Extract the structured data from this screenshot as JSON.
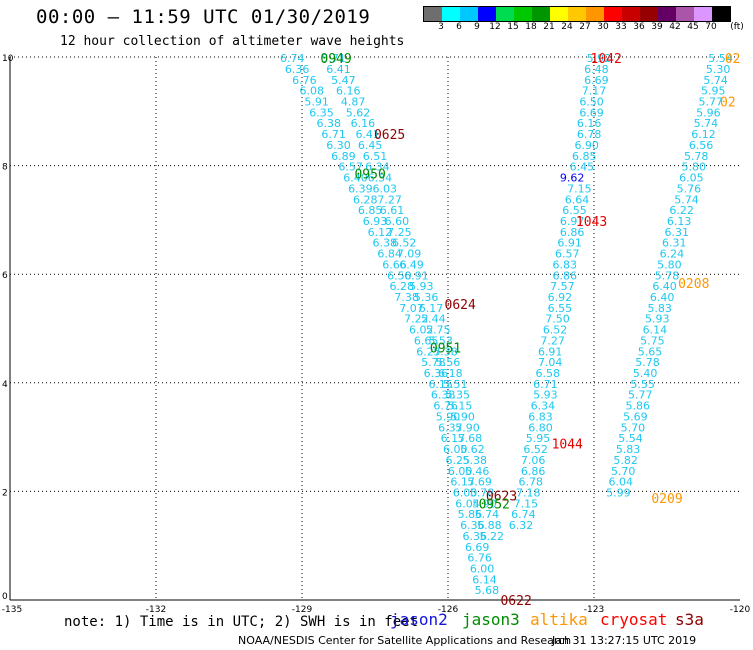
{
  "header": {
    "title": "00:00 – 11:59 UTC 01/30/2019",
    "subtitle": "12 hour collection of altimeter wave heights"
  },
  "colorbar": {
    "colors": [
      "#6e6e6e",
      "#00ffff",
      "#00c8ff",
      "#0000ff",
      "#00dc50",
      "#00c800",
      "#009600",
      "#ffff00",
      "#ffc800",
      "#ff9600",
      "#ff0000",
      "#c80000",
      "#960000",
      "#640064",
      "#aa55aa",
      "#dc96ff",
      "#000000"
    ],
    "labels": [
      "3",
      "6",
      "9",
      "12",
      "15",
      "18",
      "21",
      "24",
      "27",
      "30",
      "33",
      "36",
      "39",
      "42",
      "45",
      "70",
      "(ft)"
    ]
  },
  "chart_data": {
    "type": "scatter",
    "xlim": [
      -135,
      -120
    ],
    "ylim": [
      0,
      10
    ],
    "xticks": [
      "-135",
      "-132",
      "-129",
      "-126",
      "-123",
      "-120"
    ],
    "yticks": [
      "0",
      "2",
      "4",
      "6",
      "8",
      "10"
    ],
    "grid": true,
    "series": [
      {
        "name": "jason2",
        "color": "#1414dc",
        "points": []
      },
      {
        "name": "jason3",
        "color": "#008c00",
        "points": []
      },
      {
        "name": "altika",
        "color": "#ff9600",
        "points": []
      },
      {
        "name": "cryosat",
        "color": "#ff0000",
        "points": []
      },
      {
        "name": "s3a",
        "color": "#8c0000",
        "points": []
      }
    ],
    "tracks": [
      {
        "color": "#1ec8f0",
        "points": [
          [
            -129.2,
            9.98,
            "6.74"
          ],
          [
            -129.1,
            9.78,
            "6.36"
          ],
          [
            -128.95,
            9.58,
            "6.76"
          ],
          [
            -128.8,
            9.38,
            "6.08"
          ],
          [
            -128.7,
            9.18,
            "5.91"
          ],
          [
            -128.6,
            8.98,
            "6.35"
          ],
          [
            -128.45,
            8.78,
            "6.38"
          ],
          [
            -128.35,
            8.58,
            "6.71"
          ],
          [
            -128.25,
            8.38,
            "6.30"
          ],
          [
            -128.15,
            8.18,
            "6.89"
          ],
          [
            -128.0,
            7.98,
            "6.57"
          ],
          [
            -127.9,
            7.78,
            "6.40"
          ],
          [
            -127.8,
            7.58,
            "6.39"
          ],
          [
            -127.7,
            7.38,
            "6.28"
          ],
          [
            -127.6,
            7.18,
            "6.85"
          ],
          [
            -127.5,
            6.98,
            "6.93"
          ],
          [
            -127.4,
            6.78,
            "6.12"
          ],
          [
            -127.3,
            6.58,
            "6.38"
          ],
          [
            -127.2,
            6.38,
            "6.84"
          ],
          [
            -127.1,
            6.18,
            "6.66"
          ],
          [
            -127.0,
            5.98,
            "6.50"
          ],
          [
            -126.95,
            5.78,
            "6.28"
          ],
          [
            -126.85,
            5.58,
            "7.38"
          ],
          [
            -126.75,
            5.38,
            "7.07"
          ],
          [
            -126.65,
            5.18,
            "7.22"
          ],
          [
            -126.55,
            4.98,
            "6.02"
          ],
          [
            -126.45,
            4.78,
            "6.65"
          ],
          [
            -126.4,
            4.58,
            "6.27"
          ],
          [
            -126.3,
            4.38,
            "5.78"
          ],
          [
            -126.25,
            4.18,
            "6.36"
          ],
          [
            -126.15,
            3.98,
            "6.15"
          ],
          [
            -126.1,
            3.78,
            "6.38"
          ],
          [
            -126.05,
            3.58,
            "6.76"
          ],
          [
            -126.0,
            3.38,
            "5.90"
          ],
          [
            -125.95,
            3.18,
            "6.37"
          ],
          [
            -125.9,
            2.98,
            "6.17"
          ],
          [
            -125.85,
            2.78,
            "6.00"
          ],
          [
            -125.8,
            2.58,
            "6.25"
          ],
          [
            -125.75,
            2.38,
            "6.00"
          ],
          [
            -125.7,
            2.18,
            "6.17"
          ],
          [
            -125.65,
            1.98,
            "6.00"
          ],
          [
            -125.6,
            1.78,
            "6.04"
          ],
          [
            -125.55,
            1.58,
            "5.86"
          ],
          [
            -125.5,
            1.38,
            "6.36"
          ],
          [
            -125.45,
            1.18,
            "6.36"
          ],
          [
            -125.4,
            0.98,
            "6.69"
          ],
          [
            -125.35,
            0.78,
            "6.76"
          ],
          [
            -125.3,
            0.58,
            "6.00"
          ],
          [
            -125.25,
            0.38,
            "6.14"
          ],
          [
            -125.2,
            0.18,
            "5.68"
          ]
        ]
      },
      {
        "color": "#1ec8f0",
        "points": [
          [
            -128.35,
            9.98,
            "5.71"
          ],
          [
            -128.25,
            9.78,
            "6.41"
          ],
          [
            -128.15,
            9.58,
            "5.47"
          ],
          [
            -128.05,
            9.38,
            "6.16"
          ],
          [
            -127.95,
            9.18,
            "4.87"
          ],
          [
            -127.85,
            8.98,
            "5.62"
          ],
          [
            -127.75,
            8.78,
            "6.16"
          ],
          [
            -127.65,
            8.58,
            "6.41"
          ],
          [
            -127.6,
            8.38,
            "6.45"
          ],
          [
            -127.5,
            8.18,
            "6.51"
          ],
          [
            -127.45,
            7.98,
            "6.34"
          ],
          [
            -127.4,
            7.78,
            "6.34"
          ],
          [
            -127.3,
            7.58,
            "6.03"
          ],
          [
            -127.2,
            7.38,
            "7.27"
          ],
          [
            -127.15,
            7.18,
            "6.61"
          ],
          [
            -127.05,
            6.98,
            "6.60"
          ],
          [
            -127.0,
            6.78,
            "7.25"
          ],
          [
            -126.9,
            6.58,
            "6.52"
          ],
          [
            -126.8,
            6.38,
            "7.09"
          ],
          [
            -126.75,
            6.18,
            "6.49"
          ],
          [
            -126.65,
            5.98,
            "6.91"
          ],
          [
            -126.55,
            5.78,
            "5.93"
          ],
          [
            -126.45,
            5.58,
            "5.36"
          ],
          [
            -126.35,
            5.38,
            "6.17"
          ],
          [
            -126.3,
            5.18,
            "5.44"
          ],
          [
            -126.2,
            4.98,
            "5.75"
          ],
          [
            -126.15,
            4.78,
            "5.53"
          ],
          [
            -126.05,
            4.58,
            "5.38"
          ],
          [
            -126.0,
            4.38,
            "5.56"
          ],
          [
            -125.95,
            4.18,
            "6.18"
          ],
          [
            -125.85,
            3.98,
            "5.51"
          ],
          [
            -125.8,
            3.78,
            "5.35"
          ],
          [
            -125.75,
            3.58,
            "5.15"
          ],
          [
            -125.7,
            3.38,
            "5.90"
          ],
          [
            -125.6,
            3.18,
            "5.90"
          ],
          [
            -125.55,
            2.98,
            "5.68"
          ],
          [
            -125.5,
            2.78,
            "5.62"
          ],
          [
            -125.45,
            2.58,
            "5.38"
          ],
          [
            -125.4,
            2.38,
            "5.46"
          ],
          [
            -125.35,
            2.18,
            "5.69"
          ],
          [
            -125.3,
            1.98,
            "5.78"
          ],
          [
            -125.25,
            1.78,
            "5.90"
          ],
          [
            -125.2,
            1.58,
            "5.74"
          ],
          [
            -125.15,
            1.38,
            "5.88"
          ],
          [
            -125.1,
            1.18,
            "5.22"
          ]
        ]
      },
      {
        "color": "#1ec8f0",
        "points": [
          [
            -122.9,
            9.98,
            "5.92"
          ],
          [
            -122.95,
            9.78,
            "6.48"
          ],
          [
            -122.95,
            9.58,
            "6.69"
          ],
          [
            -123.0,
            9.38,
            "7.17"
          ],
          [
            -123.05,
            9.18,
            "6.50"
          ],
          [
            -123.05,
            8.98,
            "6.69"
          ],
          [
            -123.1,
            8.78,
            "6.16"
          ],
          [
            -123.1,
            8.58,
            "6.78"
          ],
          [
            -123.15,
            8.38,
            "6.90"
          ],
          [
            -123.2,
            8.18,
            "6.85"
          ],
          [
            -123.25,
            7.98,
            "6.45"
          ],
          [
            -123.3,
            7.58,
            "7.15"
          ],
          [
            -123.35,
            7.38,
            "6.64"
          ],
          [
            -123.4,
            7.18,
            "6.55"
          ],
          [
            -123.45,
            6.98,
            "6.97"
          ],
          [
            -123.45,
            6.78,
            "6.86"
          ],
          [
            -123.5,
            6.58,
            "6.91"
          ],
          [
            -123.55,
            6.38,
            "6.57"
          ],
          [
            -123.6,
            6.18,
            "6.83"
          ],
          [
            -123.6,
            5.98,
            "6.86"
          ],
          [
            -123.65,
            5.78,
            "7.57"
          ],
          [
            -123.7,
            5.58,
            "6.92"
          ],
          [
            -123.7,
            5.38,
            "6.55"
          ],
          [
            -123.75,
            5.18,
            "7.50"
          ],
          [
            -123.8,
            4.98,
            "6.52"
          ],
          [
            -123.85,
            4.78,
            "7.27"
          ],
          [
            -123.9,
            4.58,
            "6.91"
          ],
          [
            -123.9,
            4.38,
            "7.04"
          ],
          [
            -123.95,
            4.18,
            "6.58"
          ],
          [
            -124.0,
            3.98,
            "6.71"
          ],
          [
            -124.0,
            3.78,
            "5.93"
          ],
          [
            -124.05,
            3.58,
            "6.34"
          ],
          [
            -124.1,
            3.38,
            "6.83"
          ],
          [
            -124.1,
            3.18,
            "6.80"
          ],
          [
            -124.15,
            2.98,
            "5.95"
          ],
          [
            -124.2,
            2.78,
            "6.52"
          ],
          [
            -124.25,
            2.58,
            "7.06"
          ],
          [
            -124.25,
            2.38,
            "6.86"
          ],
          [
            -124.3,
            2.18,
            "6.78"
          ],
          [
            -124.35,
            1.98,
            "7.18"
          ],
          [
            -124.4,
            1.78,
            "7.15"
          ],
          [
            -124.45,
            1.58,
            "6.74"
          ],
          [
            -124.5,
            1.38,
            "6.32"
          ]
        ]
      },
      {
        "color": "#1ec8f0",
        "points": [
          [
            -120.4,
            9.98,
            "5.54"
          ],
          [
            -120.45,
            9.78,
            "5.30"
          ],
          [
            -120.5,
            9.58,
            "5.74"
          ],
          [
            -120.55,
            9.38,
            "5.95"
          ],
          [
            -120.6,
            9.18,
            "5.77"
          ],
          [
            -120.65,
            8.98,
            "5.96"
          ],
          [
            -120.7,
            8.78,
            "5.74"
          ],
          [
            -120.75,
            8.58,
            "6.12"
          ],
          [
            -120.8,
            8.38,
            "6.56"
          ],
          [
            -120.9,
            8.18,
            "5.78"
          ],
          [
            -120.95,
            7.98,
            "5.80"
          ],
          [
            -121.0,
            7.78,
            "6.05"
          ],
          [
            -121.05,
            7.58,
            "5.76"
          ],
          [
            -121.1,
            7.38,
            "5.74"
          ],
          [
            -121.2,
            7.18,
            "6.22"
          ],
          [
            -121.25,
            6.98,
            "6.13"
          ],
          [
            -121.3,
            6.78,
            "6.31"
          ],
          [
            -121.35,
            6.58,
            "6.31"
          ],
          [
            -121.4,
            6.38,
            "6.24"
          ],
          [
            -121.45,
            6.18,
            "5.80"
          ],
          [
            -121.5,
            5.98,
            "5.78"
          ],
          [
            -121.55,
            5.78,
            "6.40"
          ],
          [
            -121.6,
            5.58,
            "6.40"
          ],
          [
            -121.65,
            5.38,
            "5.83"
          ],
          [
            -121.7,
            5.18,
            "5.93"
          ],
          [
            -121.75,
            4.98,
            "6.14"
          ],
          [
            -121.8,
            4.78,
            "5.75"
          ],
          [
            -121.85,
            4.58,
            "5.65"
          ],
          [
            -121.9,
            4.38,
            "5.78"
          ],
          [
            -121.95,
            4.18,
            "5.40"
          ],
          [
            -122.0,
            3.98,
            "5.55"
          ],
          [
            -122.05,
            3.78,
            "5.77"
          ],
          [
            -122.1,
            3.58,
            "5.86"
          ],
          [
            -122.15,
            3.38,
            "5.69"
          ],
          [
            -122.2,
            3.18,
            "5.70"
          ],
          [
            -122.25,
            2.98,
            "5.54"
          ],
          [
            -122.3,
            2.78,
            "5.83"
          ],
          [
            -122.35,
            2.58,
            "5.82"
          ],
          [
            -122.4,
            2.38,
            "5.70"
          ],
          [
            -122.45,
            2.18,
            "6.04"
          ],
          [
            -122.5,
            1.98,
            "5.99"
          ]
        ]
      }
    ],
    "highlighted_values": [
      {
        "x": -123.45,
        "y": 7.78,
        "label": "9.62",
        "color": "#0000ff"
      }
    ],
    "time_labels": [
      {
        "x": -128.3,
        "y": 9.98,
        "label": "0949",
        "color": "#008c00"
      },
      {
        "x": -127.2,
        "y": 8.58,
        "label": "0625",
        "color": "#8c0000"
      },
      {
        "x": -127.6,
        "y": 7.85,
        "label": "0950",
        "color": "#008c00"
      },
      {
        "x": -125.75,
        "y": 5.45,
        "label": "0624",
        "color": "#8c0000"
      },
      {
        "x": -126.05,
        "y": 4.65,
        "label": "0951",
        "color": "#008c00"
      },
      {
        "x": -124.9,
        "y": 1.92,
        "label": "0623",
        "color": "#8c0000"
      },
      {
        "x": -125.05,
        "y": 1.78,
        "label": "0952",
        "color": "#008c00"
      },
      {
        "x": -124.6,
        "y": 0.0,
        "label": "0622",
        "color": "#8c0000"
      },
      {
        "x": -122.75,
        "y": 9.98,
        "label": "1042",
        "color": "#e60000"
      },
      {
        "x": -123.05,
        "y": 6.98,
        "label": "1043",
        "color": "#e60000"
      },
      {
        "x": -123.55,
        "y": 2.88,
        "label": "1044",
        "color": "#e60000"
      },
      {
        "x": -120.95,
        "y": 5.84,
        "label": "0208",
        "color": "#ff9600"
      },
      {
        "x": -121.5,
        "y": 1.88,
        "label": "0209",
        "color": "#ff9600"
      },
      {
        "x": -120.15,
        "y": 9.98,
        "label": "02",
        "color": "#ff9600"
      },
      {
        "x": -120.25,
        "y": 9.18,
        "label": "02",
        "color": "#ff9600"
      }
    ]
  },
  "footer": {
    "note": "note: 1) Time is in UTC; 2) SWH is in feet",
    "legend": [
      {
        "label": "jason2",
        "color": "#1414dc"
      },
      {
        "label": "jason3",
        "color": "#008c00"
      },
      {
        "label": "altika",
        "color": "#ff9600"
      },
      {
        "label": "cryosat",
        "color": "#ff0000"
      },
      {
        "label": "s3a",
        "color": "#8c0000"
      }
    ],
    "credit": "NOAA/NESDIS Center for Satellite Applications and Research",
    "timestamp": "Jan 31 13:27:15 UTC 2019"
  }
}
